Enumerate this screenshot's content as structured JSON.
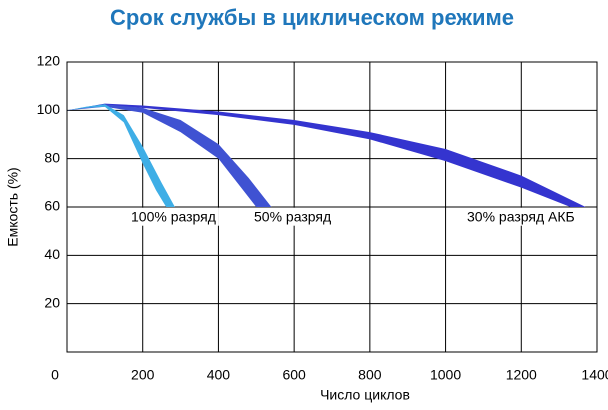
{
  "chart_data": {
    "type": "band",
    "title": "Срок службы в циклическом режиме",
    "xlabel": "Число циклов",
    "ylabel": "Емкость (%)",
    "xlim": [
      0,
      1400
    ],
    "xticks": [
      0,
      200,
      400,
      600,
      800,
      1000,
      1200,
      1400
    ],
    "ylim": [
      0,
      120
    ],
    "yticks": [
      20,
      40,
      60,
      80,
      100,
      120
    ],
    "grid": true,
    "series": [
      {
        "name": "30% разряд АКБ",
        "color": "#3434cf",
        "x_upper": [
          0,
          100,
          200,
          400,
          600,
          800,
          1000,
          1200,
          1370
        ],
        "upper": [
          100,
          102.8,
          102,
          99.5,
          96,
          91,
          84,
          73,
          60
        ],
        "x_lower": [
          0,
          100,
          200,
          400,
          600,
          800,
          1000,
          1200,
          1330
        ],
        "lower": [
          100,
          102,
          101,
          98,
          94,
          88,
          79,
          68,
          60
        ]
      },
      {
        "name": "50% разряд",
        "color": "#3f52d2",
        "x_upper": [
          0,
          100,
          200,
          300,
          400,
          480,
          540
        ],
        "upper": [
          100,
          102.5,
          101,
          96,
          86,
          72,
          60
        ],
        "x_lower": [
          0,
          100,
          200,
          300,
          400,
          460,
          500
        ],
        "lower": [
          100,
          101.5,
          99,
          91,
          80,
          68,
          60
        ]
      },
      {
        "name": "100% разряд",
        "color": "#3eaee6",
        "x_upper": [
          0,
          50,
          100,
          150,
          200,
          250,
          285
        ],
        "upper": [
          100,
          101.5,
          102.5,
          98,
          85,
          70,
          60
        ],
        "x_lower": [
          0,
          50,
          100,
          150,
          200,
          235,
          262
        ],
        "lower": [
          100,
          101,
          101.5,
          95,
          78,
          67,
          60
        ]
      }
    ]
  }
}
